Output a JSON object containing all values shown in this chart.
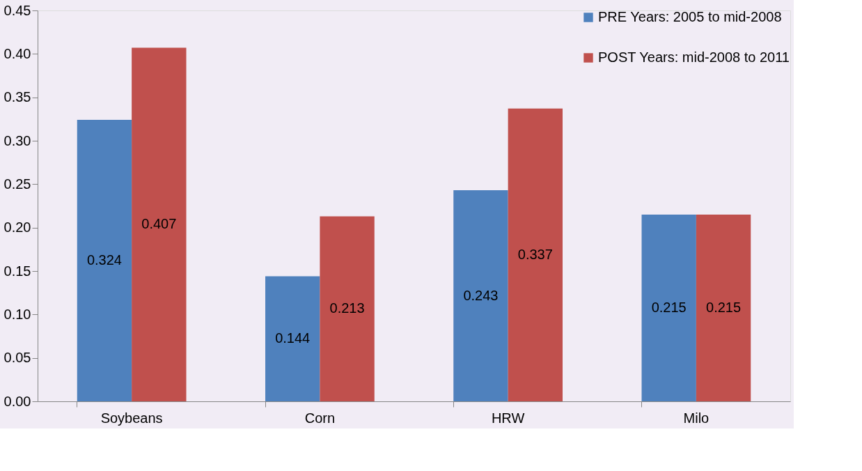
{
  "chart_data": {
    "type": "bar",
    "categories": [
      "Soybeans",
      "Corn",
      "HRW",
      "Milo"
    ],
    "series": [
      {
        "name": "PRE Years: 2005 to mid-2008",
        "color": "#4f81bd",
        "values": [
          0.324,
          0.144,
          0.243,
          0.215
        ]
      },
      {
        "name": "POST Years: mid-2008 to 2011",
        "color": "#c0504d",
        "values": [
          0.407,
          0.213,
          0.337,
          0.215
        ]
      }
    ],
    "ylim": [
      0,
      0.45
    ],
    "yticks": [
      {
        "value": 0,
        "label": "0.00"
      },
      0.05,
      {
        "value": 0.1,
        "label": "0.10"
      },
      0.15,
      {
        "value": 0.2,
        "label": "0.20"
      },
      0.25,
      {
        "value": 0.3,
        "label": "0.30"
      },
      0.35,
      {
        "value": 0.4,
        "label": "0.40"
      },
      0.45
    ],
    "data_labels": true,
    "legend": "top right",
    "grid": false
  }
}
